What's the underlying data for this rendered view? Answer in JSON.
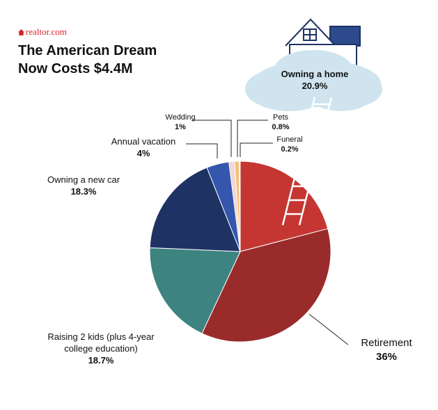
{
  "brand": "realtor.com",
  "title_line1": "The American Dream",
  "title_line2": "Now Costs $4.4M",
  "chart_data": {
    "type": "pie",
    "title": "The American Dream Now Costs $4.4M",
    "slices": [
      {
        "name": "Owning a home",
        "value": 20.9,
        "label": "20.9%",
        "color": "#c53632"
      },
      {
        "name": "Retirement",
        "value": 36,
        "label": "36%",
        "color": "#9a2b2b"
      },
      {
        "name": "Raising 2 kids (plus 4-year college education)",
        "value": 18.7,
        "label": "18.7%",
        "color": "#3d8380"
      },
      {
        "name": "Owning a new car",
        "value": 18.3,
        "label": "18.3%",
        "color": "#1e3363"
      },
      {
        "name": "Annual vacation",
        "value": 4,
        "label": "4%",
        "color": "#3457ad"
      },
      {
        "name": "Wedding",
        "value": 1,
        "label": "1%",
        "color": "#f4d4d4"
      },
      {
        "name": "Pets",
        "value": 0.8,
        "label": "0.8%",
        "color": "#f2c078"
      },
      {
        "name": "Funeral",
        "value": 0.2,
        "label": "0.2%",
        "color": "#f5e1a0"
      }
    ]
  },
  "labels": {
    "home_name": "Owning a home",
    "home_value": "20.9%",
    "retirement_name": "Retirement",
    "retirement_value": "36%",
    "kids_line1": "Raising 2 kids (plus 4-year",
    "kids_line2": "college education)",
    "kids_value": "18.7%",
    "car_name": "Owning a new car",
    "car_value": "18.3%",
    "vacation_name": "Annual vacation",
    "vacation_value": "4%",
    "wedding_name": "Wedding",
    "wedding_value": "1%",
    "pets_name": "Pets",
    "pets_value": "0.8%",
    "funeral_name": "Funeral",
    "funeral_value": "0.2%"
  }
}
